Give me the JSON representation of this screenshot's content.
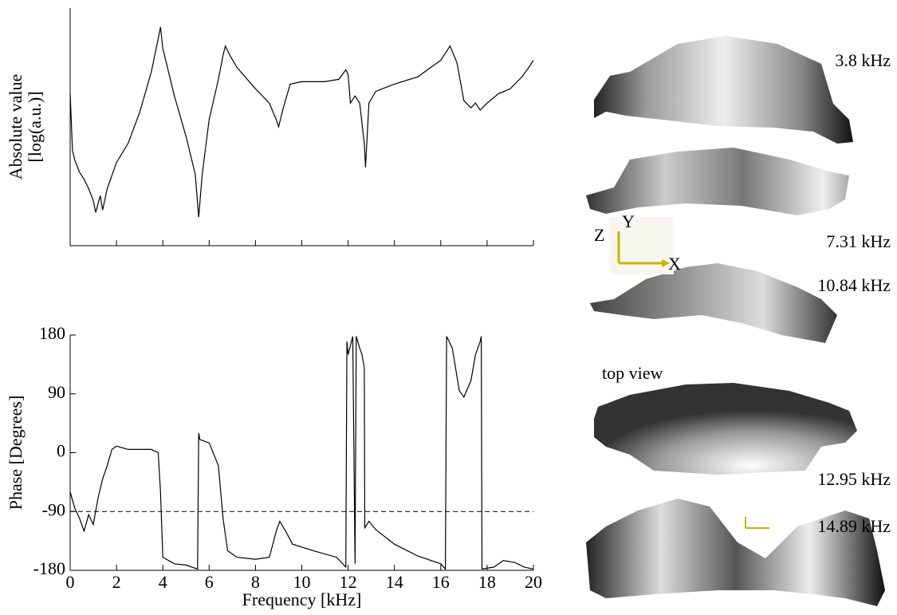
{
  "chart_data": [
    {
      "type": "line",
      "ylabel": [
        "Absolute value",
        "[log(a.u.)]"
      ],
      "color": "#000000",
      "xlim": [
        0,
        20
      ],
      "xticks": [
        0,
        2,
        4,
        6,
        8,
        10,
        12,
        14,
        16,
        18,
        20
      ],
      "ylim": [
        0,
        10
      ],
      "x": [
        0,
        0.1,
        0.2,
        0.4,
        0.6,
        0.8,
        1.0,
        1.1,
        1.3,
        1.4,
        1.6,
        2.0,
        2.5,
        3.0,
        3.5,
        3.8,
        3.9,
        4.0,
        4.5,
        5.0,
        5.4,
        5.55,
        5.7,
        6.0,
        6.4,
        6.6,
        6.7,
        6.9,
        7.2,
        8.0,
        8.6,
        8.9,
        9.0,
        9.2,
        9.5,
        10,
        11,
        11.6,
        11.9,
        12.0,
        12.1,
        12.3,
        12.5,
        12.7,
        12.75,
        12.9,
        13.2,
        14,
        15,
        16,
        16.4,
        16.7,
        17.0,
        17.3,
        17.5,
        17.7,
        18.0,
        18.5,
        19.0,
        19.5,
        19.8,
        20
      ],
      "values": [
        6.4,
        4.0,
        3.6,
        3.1,
        2.8,
        2.4,
        1.9,
        1.4,
        2.1,
        1.5,
        2.4,
        3.5,
        4.3,
        5.6,
        7.3,
        8.7,
        9.2,
        8.3,
        6.3,
        4.6,
        3.0,
        1.2,
        3.0,
        5.3,
        7.0,
        8.0,
        8.4,
        8.0,
        7.5,
        6.6,
        6.0,
        5.3,
        5.0,
        5.8,
        6.8,
        6.9,
        6.9,
        7.0,
        7.4,
        7.2,
        6.0,
        6.3,
        6.0,
        4.3,
        3.3,
        6.0,
        6.5,
        6.8,
        7.1,
        7.8,
        8.4,
        7.7,
        6.1,
        5.8,
        6.0,
        5.7,
        6.0,
        6.4,
        6.6,
        7.1,
        7.5,
        7.8
      ]
    },
    {
      "type": "line",
      "xlabel": "Frequency [kHz]",
      "ylabel": [
        "Phase [Degrees]"
      ],
      "color": "#000000",
      "xlim": [
        0,
        20
      ],
      "xticks": [
        0,
        2,
        4,
        6,
        8,
        10,
        12,
        14,
        16,
        18,
        20
      ],
      "ylim": [
        -180,
        180
      ],
      "yticks": [
        -180,
        -90,
        0,
        90,
        180
      ],
      "reference_line": -90,
      "x": [
        0,
        0.2,
        0.4,
        0.6,
        0.8,
        1.0,
        1.2,
        1.4,
        1.6,
        1.8,
        2.0,
        2.5,
        3.0,
        3.5,
        3.8,
        3.9,
        4.0,
        4.5,
        5.0,
        5.5,
        5.55,
        5.6,
        6.0,
        6.4,
        6.6,
        6.8,
        7.2,
        8.0,
        8.6,
        8.9,
        9.05,
        9.3,
        9.6,
        10.5,
        11.5,
        11.9,
        11.95,
        12.0,
        12.2,
        12.3,
        12.35,
        12.5,
        12.6,
        12.7,
        12.72,
        12.9,
        13.2,
        14,
        15,
        16.0,
        16.2,
        16.25,
        16.5,
        16.8,
        17.0,
        17.3,
        17.5,
        17.7,
        17.75,
        17.78,
        18.3,
        18.7,
        19.2,
        19.6,
        20
      ],
      "values": [
        -60,
        -85,
        -100,
        -120,
        -95,
        -110,
        -70,
        -40,
        -20,
        5,
        10,
        5,
        5,
        5,
        0,
        -60,
        -160,
        -170,
        -172,
        -178,
        30,
        20,
        15,
        -20,
        -100,
        -150,
        -160,
        -163,
        -160,
        -120,
        -105,
        -120,
        -140,
        -150,
        -160,
        -175,
        170,
        150,
        178,
        -170,
        178,
        160,
        150,
        130,
        -115,
        -105,
        -118,
        -140,
        -158,
        -170,
        -178,
        178,
        160,
        95,
        85,
        110,
        150,
        170,
        178,
        -178,
        -175,
        -165,
        -168,
        -175,
        -178
      ]
    }
  ],
  "mode_shapes": {
    "labels": [
      "3.8 kHz",
      "7.31 kHz",
      "10.84 kHz",
      "12.95 kHz",
      "14.89 kHz"
    ],
    "view_label": "top view",
    "axes": [
      "Z",
      "Y",
      "X"
    ]
  }
}
